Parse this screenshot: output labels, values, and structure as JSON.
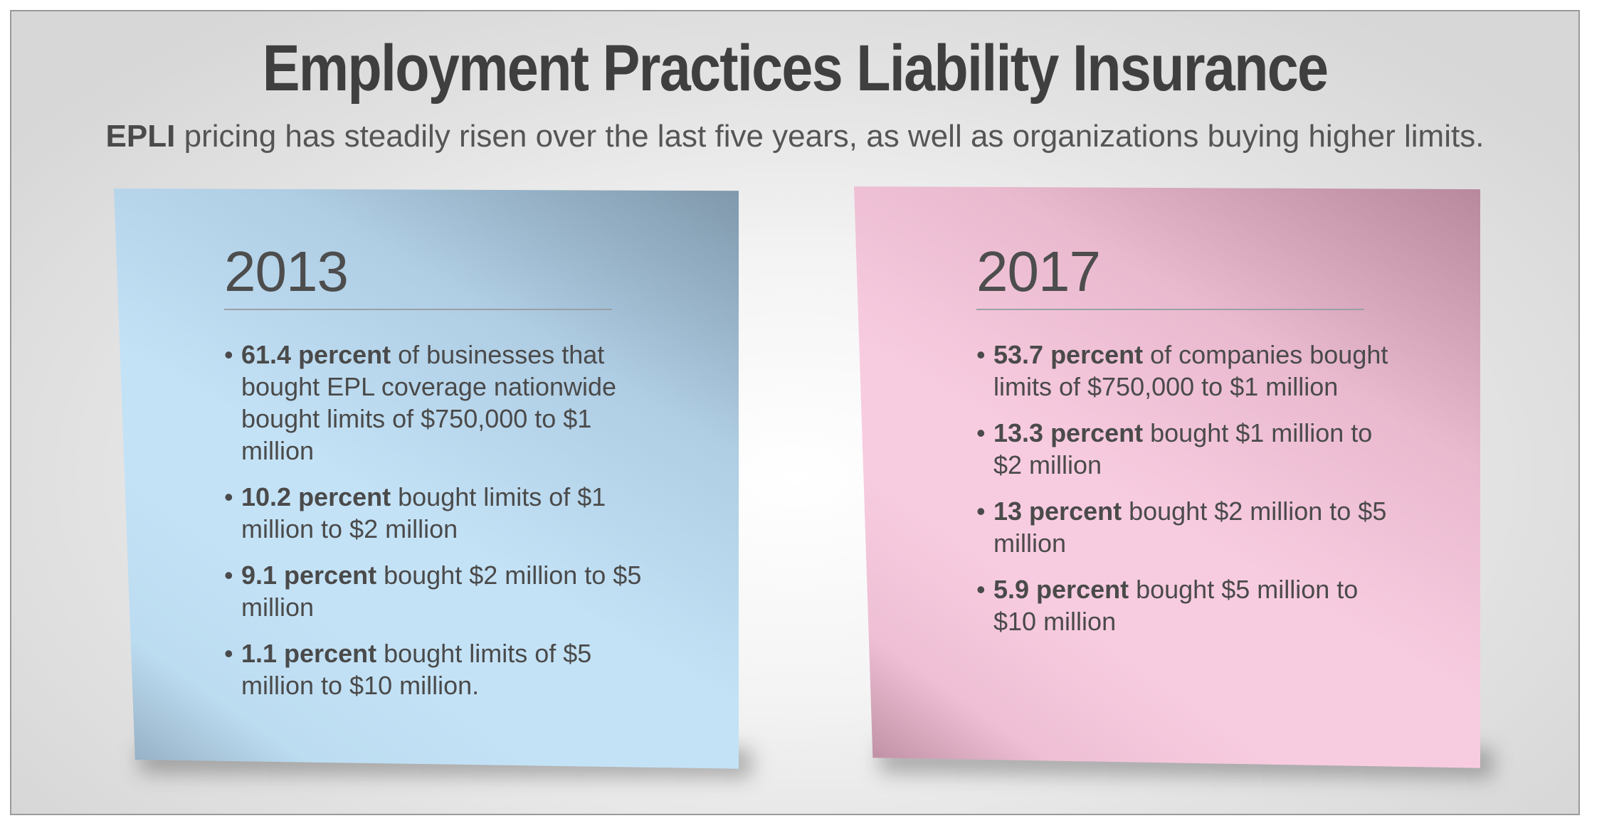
{
  "header": {
    "title": "Employment Practices Liability Insurance",
    "subtitle_bold": "EPLI",
    "subtitle_rest": " pricing has steadily risen over the last five years, as well as organizations buying higher limits."
  },
  "notes": [
    {
      "year": "2013",
      "color": "#c4e2f6",
      "items": [
        {
          "bold": "61.4 percent",
          "text": " of businesses that bought EPL coverage nationwide bought limits of $750,000 to $1 million"
        },
        {
          "bold": "10.2 percent",
          "text": " bought limits of $1 million to $2 million"
        },
        {
          "bold": "9.1 percent",
          "text": " bought $2 million to $5 million"
        },
        {
          "bold": "1.1 percent",
          "text": " bought limits of $5 million to $10 million."
        }
      ]
    },
    {
      "year": "2017",
      "color": "#f8cce0",
      "items": [
        {
          "bold": "53.7 percent",
          "text": " of companies bought limits of $750,000 to $1 million"
        },
        {
          "bold": "13.3 percent",
          "text": " bought $1 million to $2 million"
        },
        {
          "bold": "13 percent",
          "text": " bought $2 million to $5 million"
        },
        {
          "bold": "5.9 percent",
          "text": " bought $5 million to $10 million"
        }
      ]
    }
  ]
}
